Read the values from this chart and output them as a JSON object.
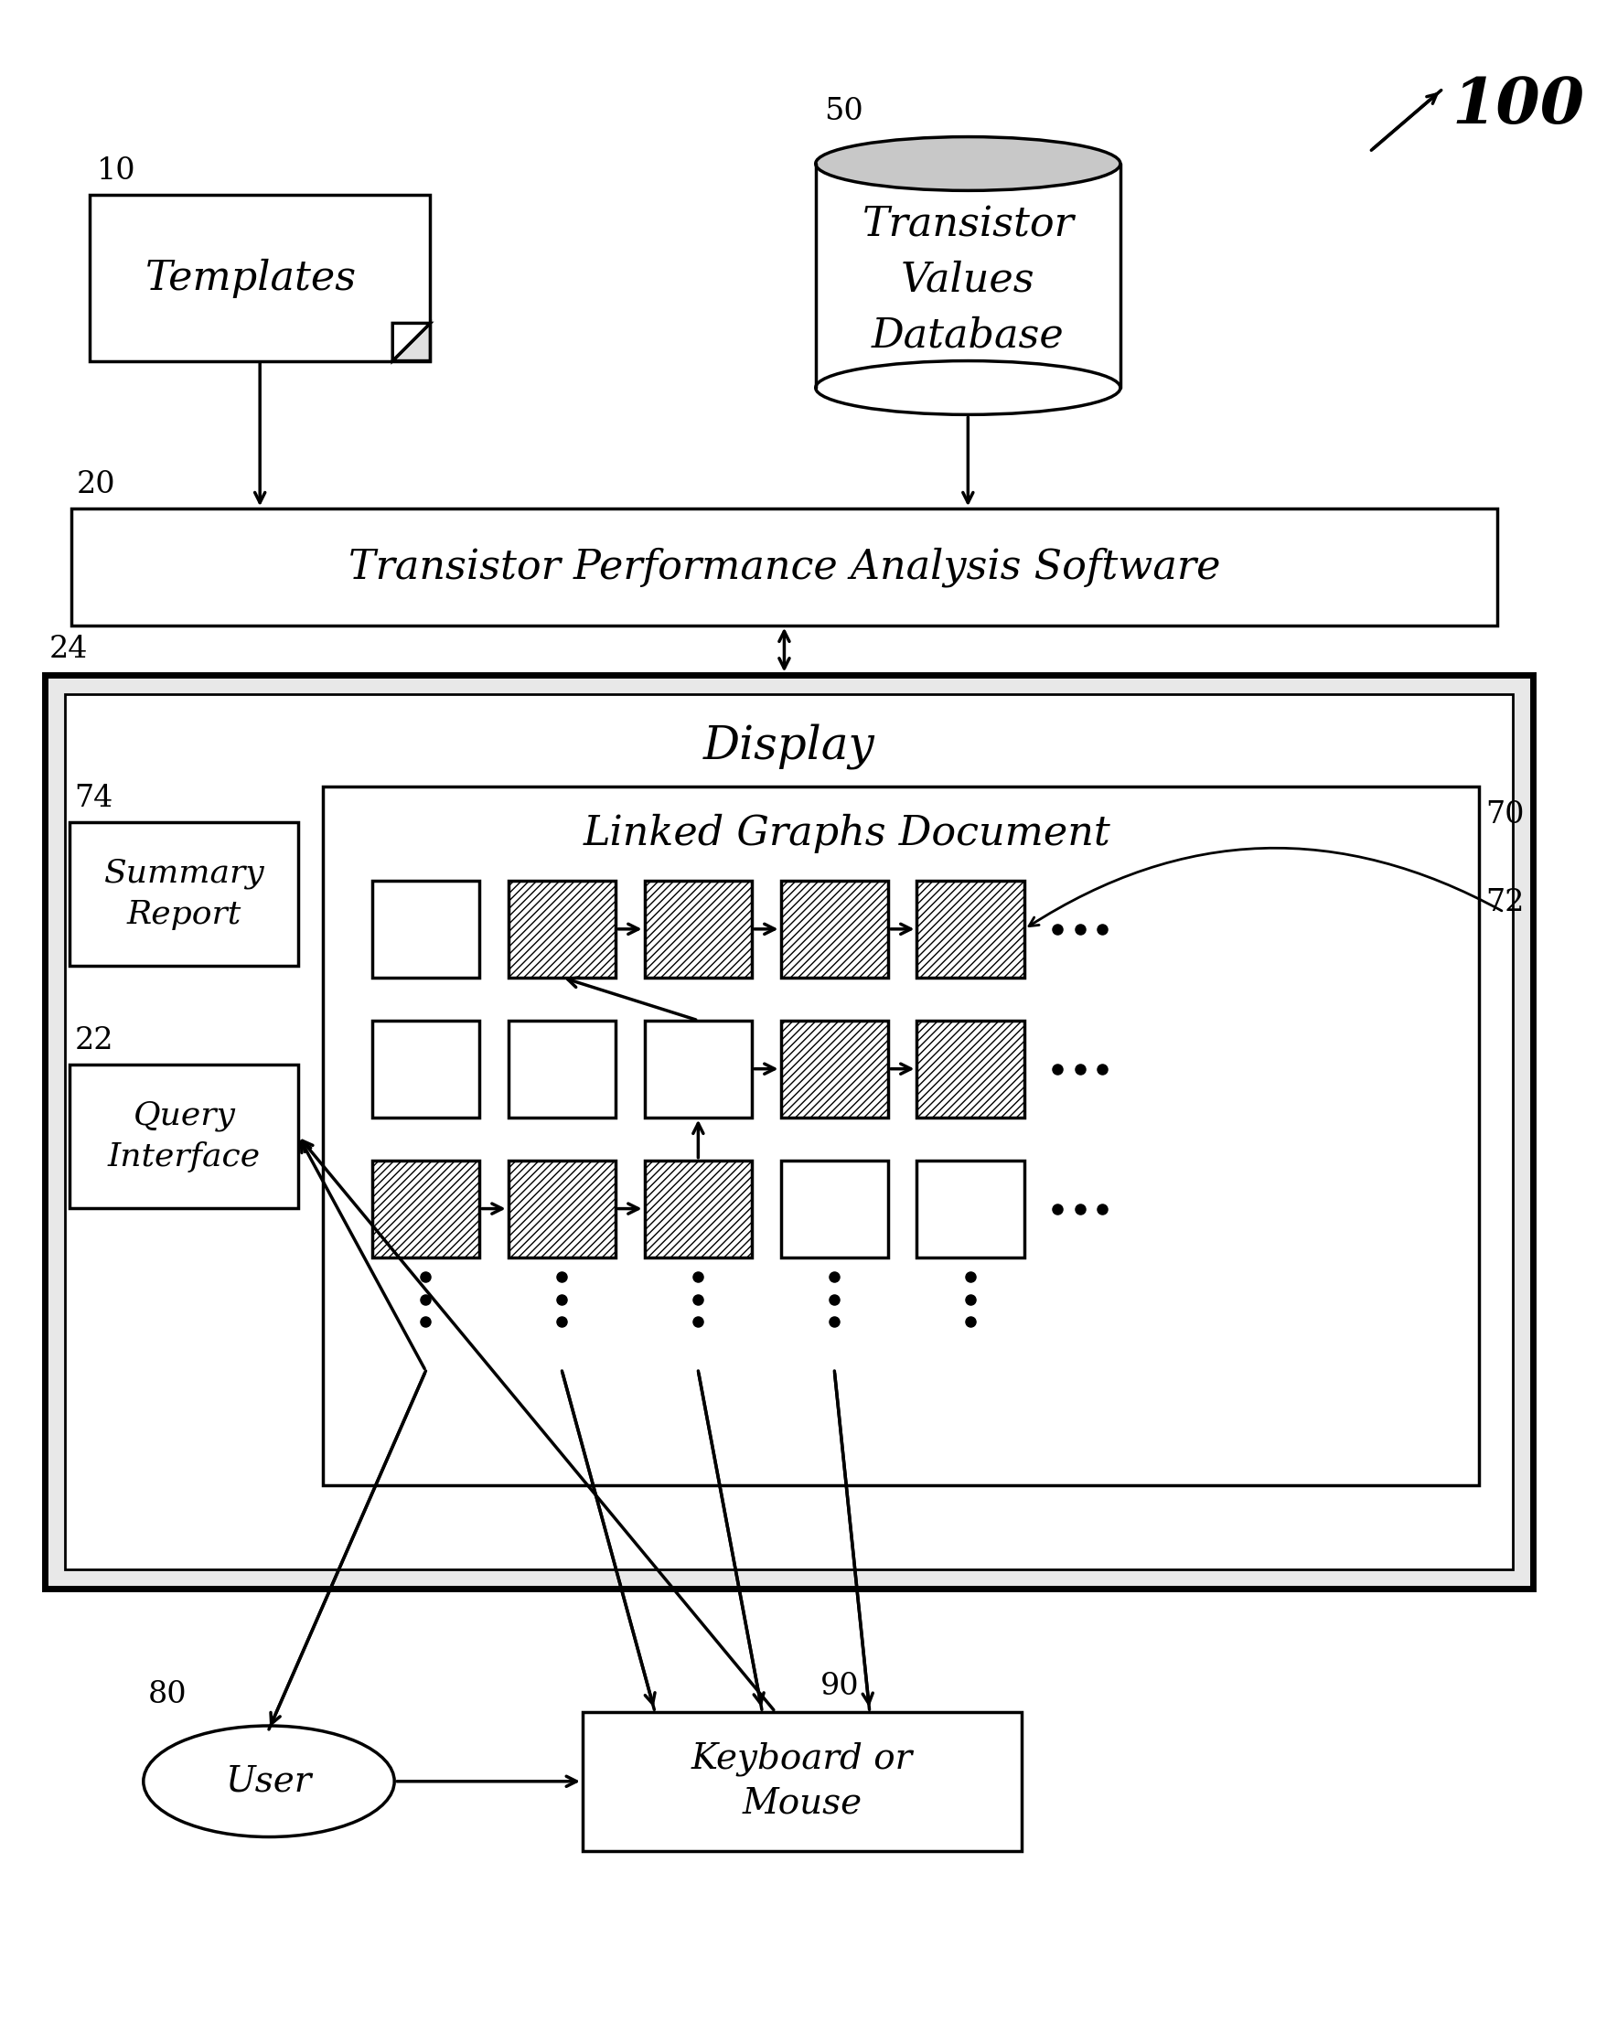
{
  "bg_color": "#ffffff",
  "title_label": "100",
  "label_10": "10",
  "label_20": "20",
  "label_22": "22",
  "label_24": "24",
  "label_50": "50",
  "label_70": "70",
  "label_72": "72",
  "label_74": "74",
  "label_80": "80",
  "label_90": "90",
  "templates_text": "Templates",
  "db_text": "Transistor\nValues\nDatabase",
  "software_text": "Transistor Performance Analysis Software",
  "display_text": "Display",
  "linked_graphs_text": "Linked Graphs Document",
  "summary_text": "Summary\nReport",
  "query_text": "Query\nInterface",
  "user_text": "User",
  "keyboard_text": "Keyboard or\nMouse"
}
